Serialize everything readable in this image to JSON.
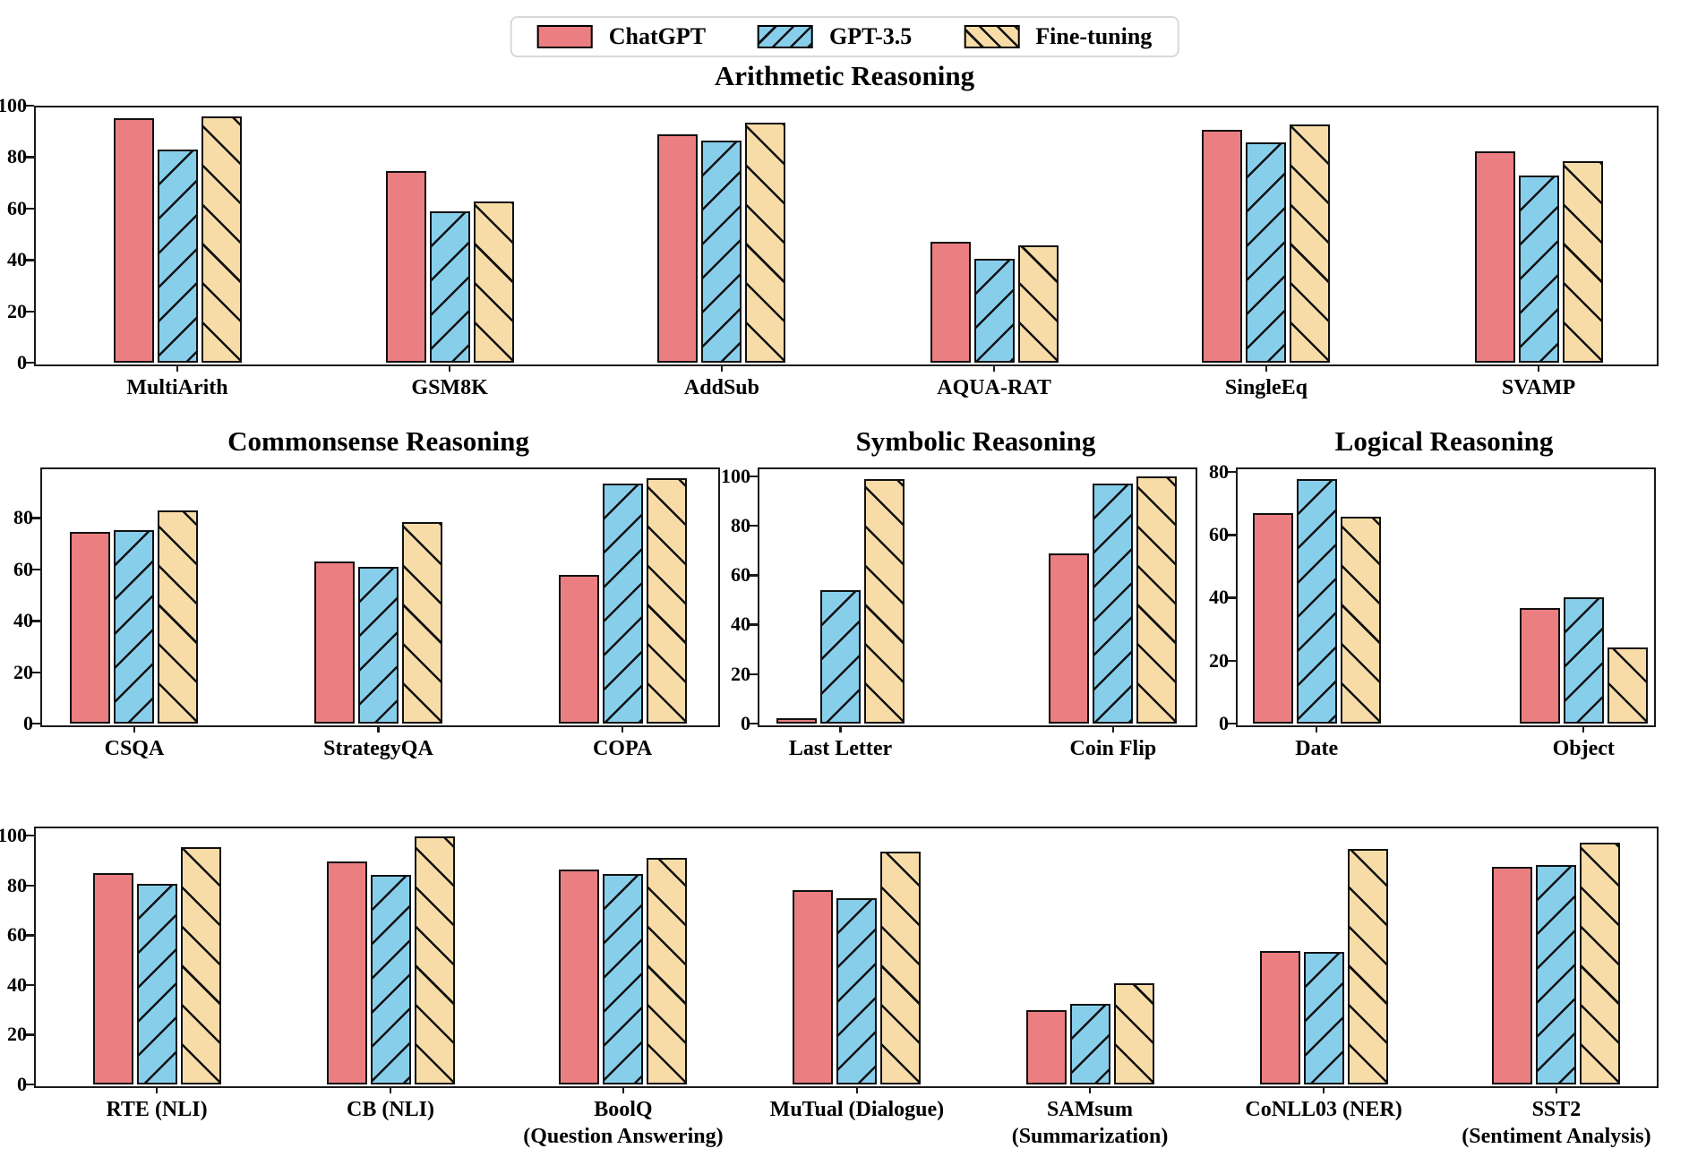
{
  "legend": {
    "edge_color": "#000000",
    "items": [
      {
        "label": "ChatGPT",
        "color": "#EA7E80",
        "hatch": "none"
      },
      {
        "label": "GPT-3.5",
        "color": "#87CEEB",
        "hatch": "forward-slash"
      },
      {
        "label": "Fine-tuning",
        "color": "#F8DCA8",
        "hatch": "back-slash"
      }
    ]
  },
  "chart_data": [
    {
      "id": "arithmetic",
      "type": "bar",
      "title": "Arithmetic Reasoning",
      "ylim": [
        0,
        100
      ],
      "yticks": [
        0,
        20,
        40,
        60,
        80,
        100
      ],
      "grid": false,
      "legend_position": "top-center",
      "categories": [
        "MultiArith",
        "GSM8K",
        "AddSub",
        "AQUA-RAT",
        "SingleEq",
        "SVAMP"
      ],
      "series": [
        {
          "name": "ChatGPT",
          "values": [
            95.2,
            74.6,
            89.0,
            47.0,
            90.6,
            82.3
          ]
        },
        {
          "name": "GPT-3.5",
          "values": [
            83.0,
            58.9,
            86.5,
            40.5,
            85.7,
            72.9
          ]
        },
        {
          "name": "Fine-tuning",
          "values": [
            95.8,
            62.7,
            93.5,
            45.5,
            92.8,
            78.5
          ]
        }
      ]
    },
    {
      "id": "commonsense",
      "type": "bar",
      "title": "Commonsense Reasoning",
      "ylim": [
        0,
        99.6
      ],
      "yticks": [
        0,
        20,
        40,
        60,
        80
      ],
      "grid": false,
      "categories": [
        "CSQA",
        "StrategyQA",
        "COPA"
      ],
      "series": [
        {
          "name": "ChatGPT",
          "values": [
            74.7,
            63.0,
            57.8
          ]
        },
        {
          "name": "GPT-3.5",
          "values": [
            75.2,
            61.0,
            93.3
          ]
        },
        {
          "name": "Fine-tuning",
          "values": [
            82.9,
            78.4,
            95.4
          ]
        }
      ]
    },
    {
      "id": "symbolic",
      "type": "bar",
      "title": "Symbolic Reasoning",
      "ylim": [
        0,
        103.5
      ],
      "yticks": [
        0,
        20,
        40,
        60,
        80,
        100
      ],
      "grid": false,
      "categories": [
        "Last Letter",
        "Coin Flip"
      ],
      "series": [
        {
          "name": "ChatGPT",
          "values": [
            2.2,
            68.7
          ]
        },
        {
          "name": "GPT-3.5",
          "values": [
            53.9,
            97.0
          ]
        },
        {
          "name": "Fine-tuning",
          "values": [
            98.8,
            99.8
          ]
        }
      ]
    },
    {
      "id": "logical",
      "type": "bar",
      "title": "Logical Reasoning",
      "ylim": [
        0,
        81.4
      ],
      "yticks": [
        0,
        20,
        40,
        60,
        80
      ],
      "grid": false,
      "categories": [
        "Date",
        "Object"
      ],
      "series": [
        {
          "name": "ChatGPT",
          "values": [
            66.9,
            36.7
          ]
        },
        {
          "name": "GPT-3.5",
          "values": [
            77.7,
            40.1
          ]
        },
        {
          "name": "Fine-tuning",
          "values": [
            65.7,
            24.2
          ]
        }
      ]
    },
    {
      "id": "nlp-tasks",
      "type": "bar",
      "ylim": [
        0,
        103.6
      ],
      "yticks": [
        0,
        20,
        40,
        60,
        80,
        100
      ],
      "grid": false,
      "categories": [
        {
          "label": "RTE (NLI)"
        },
        {
          "label": "CB (NLI)"
        },
        {
          "label": "BoolQ",
          "sublabel": "(Question Answering)"
        },
        {
          "label": "MuTual (Dialogue)"
        },
        {
          "label": "SAMsum",
          "sublabel": "(Summarization)"
        },
        {
          "label": "CoNLL03 (NER)"
        },
        {
          "label": "SST2",
          "sublabel": "(Sentiment Analysis)"
        }
      ],
      "series": [
        {
          "name": "ChatGPT",
          "values": [
            85.0,
            89.5,
            86.5,
            78.0,
            30.0,
            53.5,
            87.3
          ]
        },
        {
          "name": "GPT-3.5",
          "values": [
            80.5,
            84.0,
            84.5,
            75.0,
            32.5,
            53.2,
            88.3
          ]
        },
        {
          "name": "Fine-tuning",
          "values": [
            95.5,
            99.8,
            91.0,
            93.5,
            40.5,
            94.5,
            97.0
          ]
        }
      ]
    }
  ]
}
